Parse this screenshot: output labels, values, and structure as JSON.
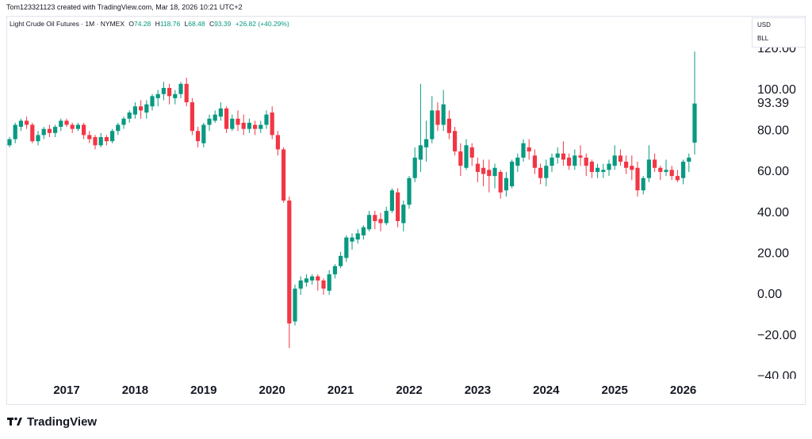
{
  "attribution": "Tom123321123 created with TradingView.com, Mar 18, 2026 10:21 UTC+2",
  "brand": "TradingView",
  "chart_data": {
    "type": "candlestick",
    "symbol": "Light Crude Oil Futures · 1M · NYMEX",
    "letters": {
      "open": "O",
      "high": "H",
      "low": "L",
      "close": "C"
    },
    "change": "+26.82 (+40.29%)",
    "currency": "USD",
    "unit": "BLL",
    "up_color": "#089981",
    "down_color": "#f23645",
    "ylim": [
      -41,
      136.2
    ],
    "yticks": [
      {
        "value": -40,
        "label": "−40.00"
      },
      {
        "value": -20,
        "label": "−20.00"
      },
      {
        "value": 0,
        "label": "0.00"
      },
      {
        "value": 20,
        "label": "20.00"
      },
      {
        "value": 40,
        "label": "40.00"
      },
      {
        "value": 60,
        "label": "60.00"
      },
      {
        "value": 80,
        "label": "80.00"
      },
      {
        "value": 100,
        "label": "100.00"
      },
      {
        "value": 120,
        "label": "120.00"
      }
    ],
    "categories": [
      null,
      null,
      null,
      null,
      null,
      null,
      null,
      null,
      null,
      null,
      "2017",
      null,
      null,
      null,
      null,
      null,
      null,
      null,
      null,
      null,
      null,
      null,
      "2018",
      null,
      null,
      null,
      null,
      null,
      null,
      null,
      null,
      null,
      null,
      null,
      "2019",
      null,
      null,
      null,
      null,
      null,
      null,
      null,
      null,
      null,
      null,
      null,
      "2020",
      null,
      null,
      null,
      null,
      null,
      null,
      null,
      null,
      null,
      null,
      null,
      "2021",
      null,
      null,
      null,
      null,
      null,
      null,
      null,
      null,
      null,
      null,
      null,
      "2022",
      null,
      null,
      null,
      null,
      null,
      null,
      null,
      null,
      null,
      null,
      null,
      "2023",
      null,
      null,
      null,
      null,
      null,
      null,
      null,
      null,
      null,
      null,
      null,
      "2024",
      null,
      null,
      null,
      null,
      null,
      null,
      null,
      null,
      null,
      null,
      null,
      "2025",
      null,
      null,
      null,
      null,
      null,
      null,
      null,
      null,
      null,
      null,
      null,
      "2026",
      null,
      null
    ],
    "open": [
      73,
      76,
      82,
      85,
      83,
      75,
      78,
      81,
      79,
      82,
      85,
      83,
      81,
      83,
      78,
      77,
      73,
      77,
      75,
      80,
      83,
      86,
      88,
      92,
      89,
      92,
      96,
      98,
      101,
      96,
      98,
      103,
      94,
      80,
      74,
      83,
      85,
      87,
      91,
      81,
      86,
      84,
      81,
      83,
      81,
      83,
      89,
      78,
      71,
      46,
      -13,
      3,
      6,
      7,
      9,
      7,
      2,
      10,
      14,
      18,
      26,
      27,
      29,
      32,
      39,
      37,
      35,
      41,
      50,
      35,
      44,
      57,
      66,
      72,
      76,
      90,
      83,
      86,
      80,
      70,
      62,
      72,
      64,
      62,
      61,
      58,
      60,
      51,
      53,
      63,
      67,
      72,
      68,
      62,
      57,
      63,
      67,
      69,
      67,
      63,
      68,
      67,
      65,
      60,
      60,
      61,
      63,
      68,
      65,
      63,
      62,
      51,
      57,
      66,
      62,
      60,
      61,
      58,
      57,
      65,
      74.28
    ],
    "high": [
      77,
      84,
      86,
      87,
      84,
      80,
      82,
      83,
      83,
      86,
      86,
      84,
      84,
      84,
      80,
      78,
      79,
      78,
      81,
      84,
      87,
      90,
      94,
      95,
      95,
      98,
      100,
      104,
      103,
      100,
      104,
      106,
      96,
      82,
      84,
      88,
      90,
      94,
      92,
      88,
      90,
      88,
      86,
      85,
      85,
      90,
      92,
      80,
      72,
      48,
      5,
      9,
      10,
      10,
      10,
      8,
      12,
      15,
      21,
      29,
      30,
      32,
      34,
      41,
      41,
      40,
      43,
      52,
      52,
      46,
      58,
      72,
      103,
      85,
      97,
      94,
      100,
      90,
      82,
      74,
      76,
      74,
      67,
      66,
      66,
      64,
      61,
      60,
      66,
      69,
      76,
      76,
      71,
      64,
      66,
      69,
      72,
      75,
      69,
      71,
      73,
      69,
      66,
      64,
      64,
      66,
      73,
      71,
      68,
      68,
      65,
      58,
      73,
      69,
      63,
      66,
      63,
      61,
      66,
      69,
      118.76
    ],
    "low": [
      72,
      74,
      80,
      81,
      74,
      73,
      76,
      77,
      77,
      80,
      82,
      79,
      80,
      76,
      74,
      71,
      72,
      73,
      74,
      78,
      81,
      84,
      86,
      86,
      86,
      90,
      92,
      95,
      93,
      93,
      96,
      92,
      78,
      72,
      72,
      80,
      84,
      85,
      79,
      80,
      80,
      78,
      79,
      78,
      79,
      81,
      76,
      68,
      45,
      -26,
      -15,
      0,
      4,
      5,
      2,
      0,
      0,
      8,
      13,
      16,
      22,
      25,
      27,
      31,
      32,
      31,
      34,
      40,
      33,
      31,
      42,
      55,
      60,
      65,
      74,
      80,
      80,
      76,
      68,
      58,
      61,
      63,
      55,
      53,
      50,
      52,
      47,
      48,
      52,
      60,
      65,
      66,
      59,
      54,
      53,
      60,
      64,
      63,
      61,
      61,
      63,
      58,
      57,
      57,
      57,
      58,
      61,
      63,
      59,
      56,
      48,
      49,
      55,
      60,
      56,
      58,
      56,
      55,
      54,
      60,
      68.48
    ],
    "close": [
      76,
      83,
      85,
      83,
      75,
      78,
      81,
      79,
      82,
      85,
      83,
      81,
      83,
      78,
      76,
      73,
      77,
      75,
      80,
      83,
      86,
      89,
      92,
      90,
      93,
      97,
      98,
      101,
      97,
      98,
      103,
      94,
      80,
      75,
      83,
      86,
      88,
      91,
      81,
      86,
      83,
      81,
      84,
      81,
      83,
      88,
      78,
      71,
      46,
      -14,
      3,
      7,
      8,
      9,
      7,
      3,
      10,
      14,
      19,
      28,
      28,
      30,
      33,
      39,
      36,
      35,
      41,
      51,
      36,
      44,
      57,
      67,
      73,
      76,
      90,
      83,
      93,
      79,
      70,
      63,
      73,
      67,
      60,
      59,
      58,
      62,
      50,
      57,
      65,
      67,
      74,
      70,
      62,
      57,
      63,
      67,
      69,
      66,
      63,
      68,
      67,
      63,
      60,
      62,
      61,
      64,
      68,
      65,
      62,
      61,
      51,
      57,
      66,
      62,
      60,
      61,
      58,
      56,
      65,
      67,
      93.39
    ]
  }
}
